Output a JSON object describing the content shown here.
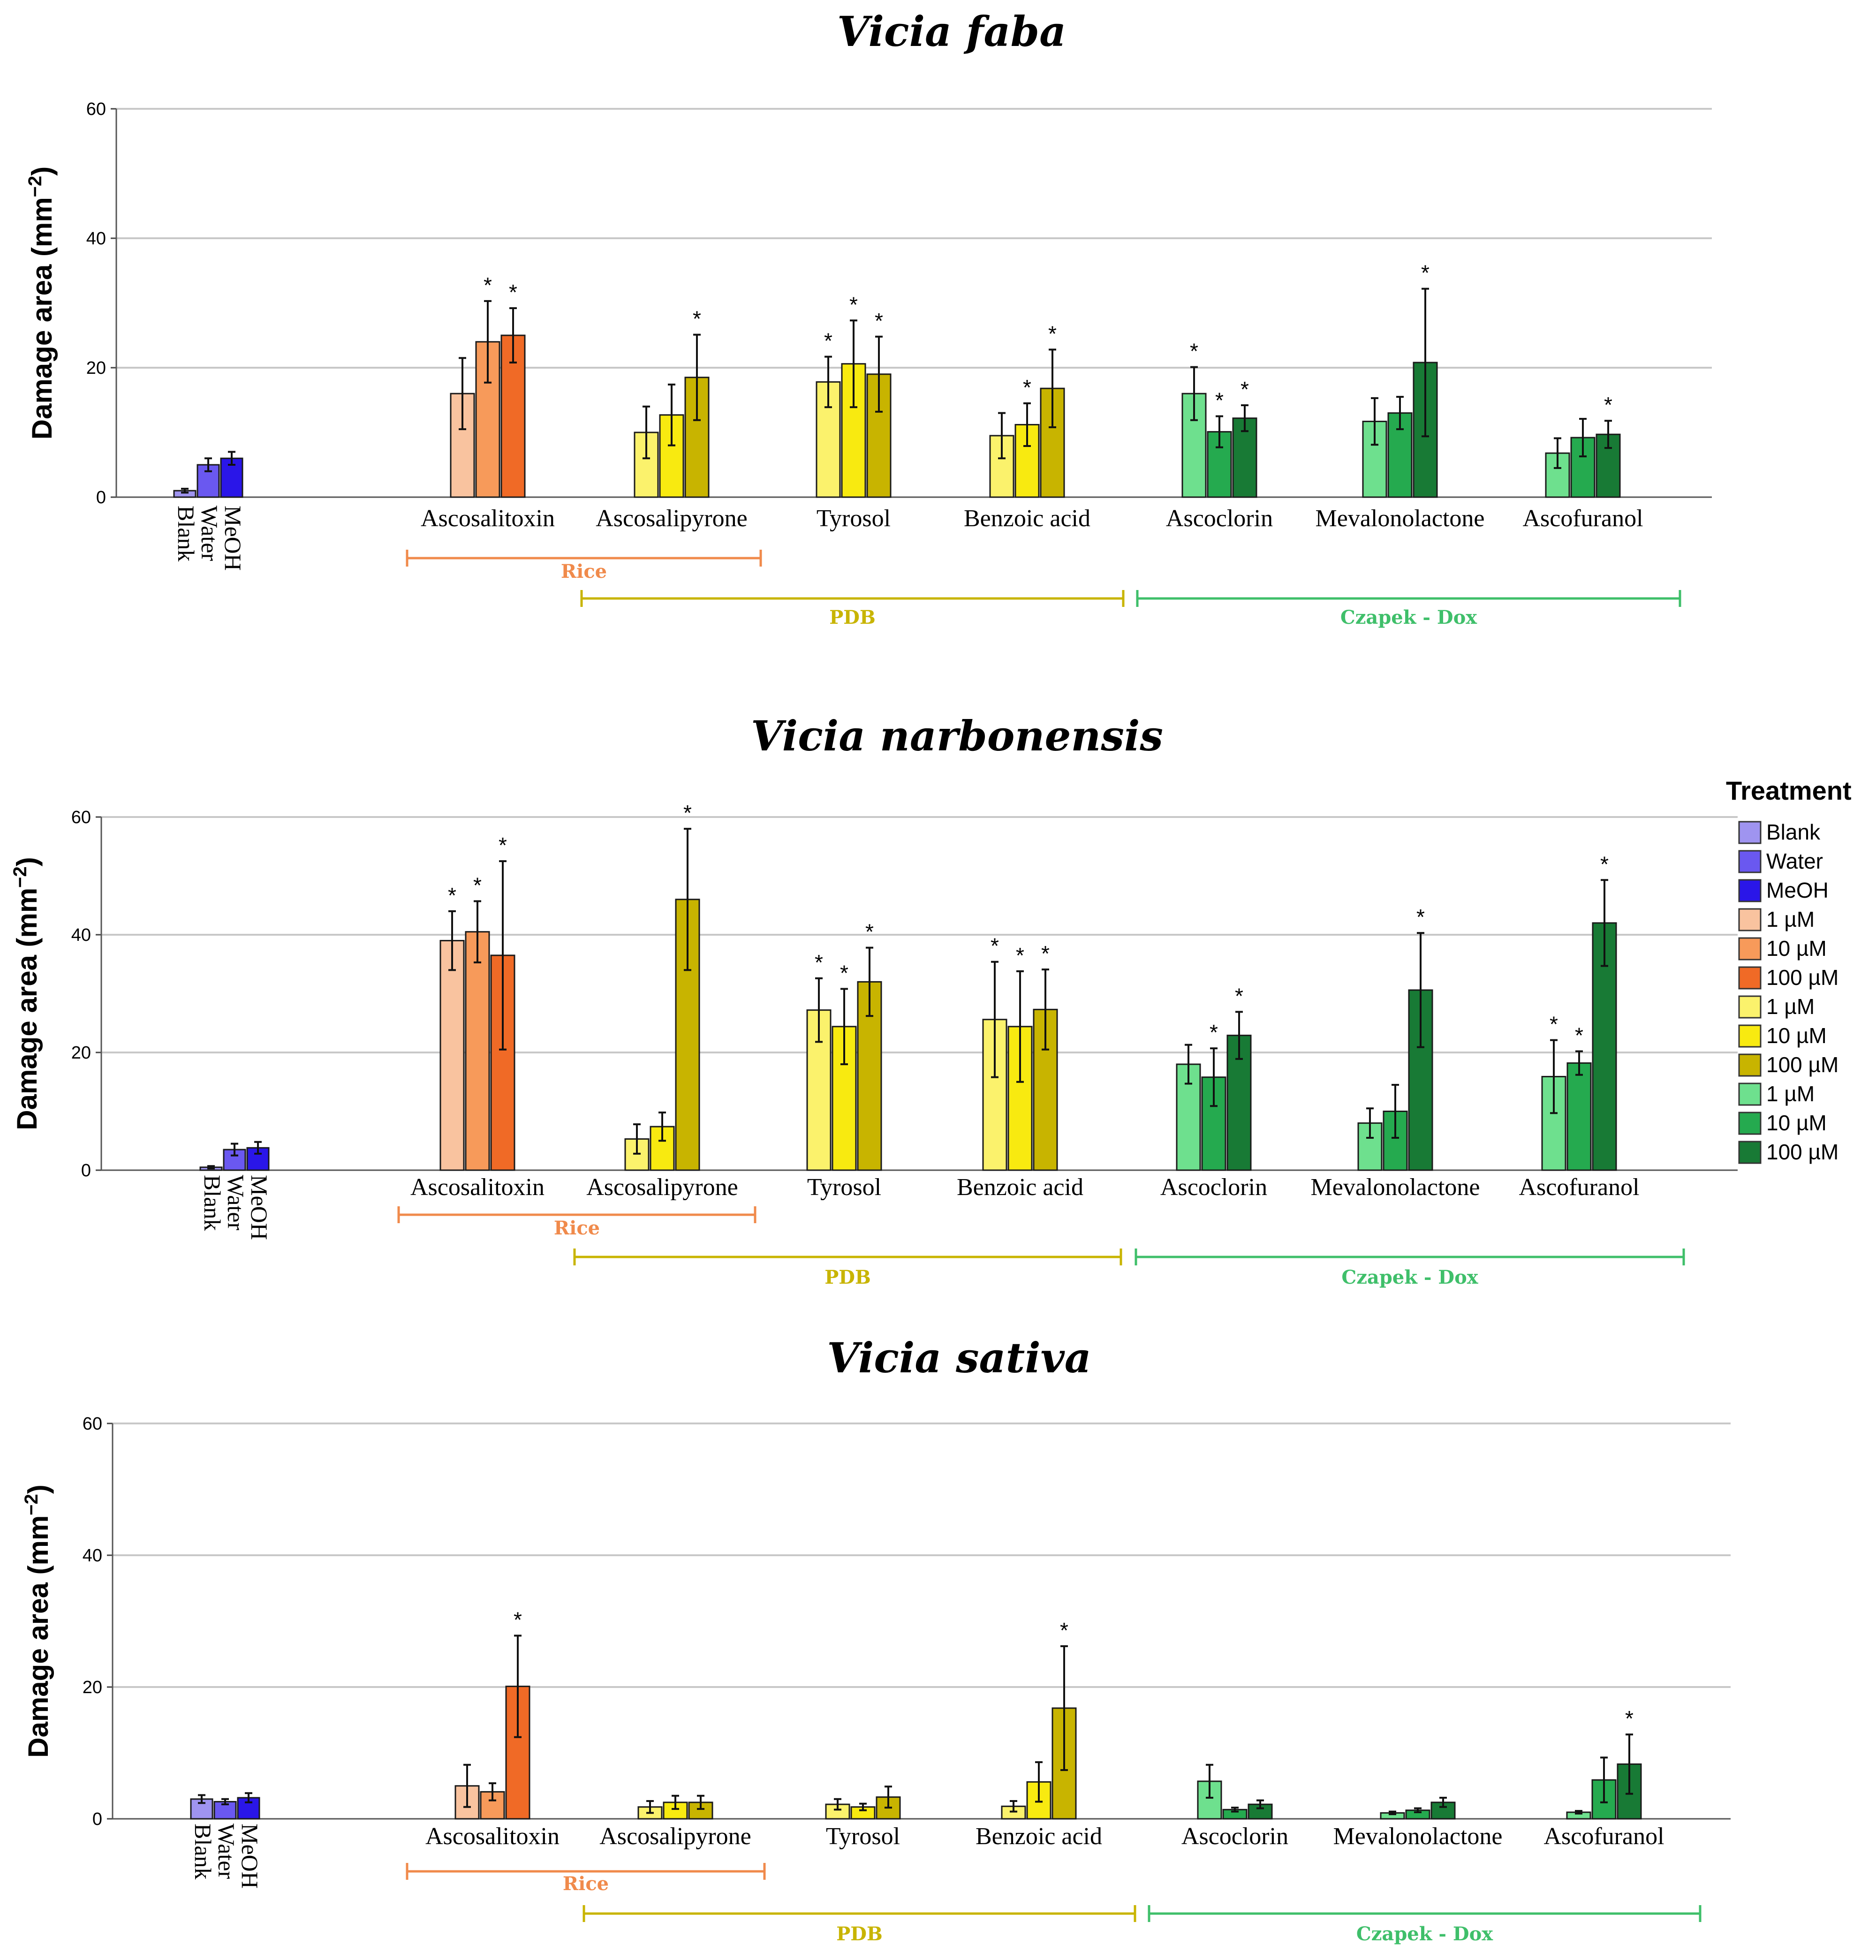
{
  "chart_data": {
    "type": "bar",
    "y_axis_label": "Damage area (mm",
    "y_axis_label_exponent": "−2",
    "y_axis_label_close": ")",
    "ylim": [
      0,
      60
    ],
    "yticks": [
      0,
      20,
      40,
      60
    ],
    "control_labels": [
      "Blank",
      "Water",
      "MeOH"
    ],
    "compound_labels": [
      "Ascosalitoxin",
      "Ascosalipyrone",
      "Tyrosol",
      "Benzoic acid",
      "Ascoclorin",
      "Mevalonolactone",
      "Ascofuranol"
    ],
    "media_groups": [
      {
        "name": "Rice",
        "color": "#f08a4b"
      },
      {
        "name": "PDB",
        "color": "#c8b400"
      },
      {
        "name": "Czapek - Dox",
        "color": "#3fbf6a"
      }
    ],
    "colors": {
      "control": [
        "#9f94f0",
        "#6a58f0",
        "#2a16e8"
      ],
      "rice": [
        "#f9c39f",
        "#f79a5a",
        "#f06a26"
      ],
      "pdb": [
        "#fbf26c",
        "#f8ea10",
        "#c8b400"
      ],
      "czapek": [
        "#6ee08e",
        "#25aa4f",
        "#187a35"
      ]
    },
    "legend": {
      "title": "Treatment",
      "items": [
        {
          "label": "Blank",
          "color": "#9f94f0"
        },
        {
          "label": "Water",
          "color": "#6a58f0"
        },
        {
          "label": "MeOH",
          "color": "#2a16e8"
        },
        {
          "label": "1 µM",
          "color": "#f9c39f"
        },
        {
          "label": "10 µM",
          "color": "#f79a5a"
        },
        {
          "label": "100 µM",
          "color": "#f06a26"
        },
        {
          "label": "1 µM",
          "color": "#fbf26c"
        },
        {
          "label": "10 µM",
          "color": "#f8ea10"
        },
        {
          "label": "100 µM",
          "color": "#c8b400"
        },
        {
          "label": "1 µM",
          "color": "#6ee08e"
        },
        {
          "label": "10 µM",
          "color": "#25aa4f"
        },
        {
          "label": "100 µM",
          "color": "#187a35"
        }
      ]
    },
    "panels": [
      {
        "title": "Vicia faba",
        "controls": [
          {
            "v": 1,
            "e": 0.3
          },
          {
            "v": 5,
            "e": 1
          },
          {
            "v": 6,
            "e": 1
          }
        ],
        "compounds": [
          {
            "name": "Ascosalitoxin",
            "bars": [
              {
                "v": 16,
                "e": 5.5,
                "sig": false
              },
              {
                "v": 24,
                "e": 6.3,
                "sig": true
              },
              {
                "v": 25,
                "e": 4.2,
                "sig": true
              }
            ]
          },
          {
            "name": "Ascosalipyrone",
            "bars": [
              {
                "v": 10,
                "e": 4,
                "sig": false
              },
              {
                "v": 12.7,
                "e": 4.7,
                "sig": false
              },
              {
                "v": 18.5,
                "e": 6.6,
                "sig": true
              }
            ]
          },
          {
            "name": "Tyrosol",
            "bars": [
              {
                "v": 17.8,
                "e": 3.9,
                "sig": true
              },
              {
                "v": 20.6,
                "e": 6.7,
                "sig": true
              },
              {
                "v": 19,
                "e": 5.8,
                "sig": true
              }
            ]
          },
          {
            "name": "Benzoic acid",
            "bars": [
              {
                "v": 9.5,
                "e": 3.5,
                "sig": false
              },
              {
                "v": 11.2,
                "e": 3.3,
                "sig": true
              },
              {
                "v": 16.8,
                "e": 6,
                "sig": true
              }
            ]
          },
          {
            "name": "Ascoclorin",
            "bars": [
              {
                "v": 16,
                "e": 4.1,
                "sig": true
              },
              {
                "v": 10.1,
                "e": 2.4,
                "sig": true
              },
              {
                "v": 12.2,
                "e": 2,
                "sig": true
              }
            ]
          },
          {
            "name": "Mevalonolactone",
            "bars": [
              {
                "v": 11.7,
                "e": 3.6,
                "sig": false
              },
              {
                "v": 13,
                "e": 2.5,
                "sig": false
              },
              {
                "v": 20.8,
                "e": 11.4,
                "sig": true
              }
            ]
          },
          {
            "name": "Ascofuranol",
            "bars": [
              {
                "v": 6.8,
                "e": 2.3,
                "sig": false
              },
              {
                "v": 9.2,
                "e": 2.9,
                "sig": false
              },
              {
                "v": 9.7,
                "e": 2.1,
                "sig": true
              }
            ]
          }
        ]
      },
      {
        "title": "Vicia narbonensis",
        "controls": [
          {
            "v": 0.5,
            "e": 0.2
          },
          {
            "v": 3.5,
            "e": 1
          },
          {
            "v": 3.8,
            "e": 1
          }
        ],
        "compounds": [
          {
            "name": "Ascosalitoxin",
            "bars": [
              {
                "v": 39,
                "e": 5,
                "sig": true
              },
              {
                "v": 40.5,
                "e": 5.2,
                "sig": true
              },
              {
                "v": 36.5,
                "e": 16,
                "sig": true
              }
            ]
          },
          {
            "name": "Ascosalipyrone",
            "bars": [
              {
                "v": 5.3,
                "e": 2.5,
                "sig": false
              },
              {
                "v": 7.4,
                "e": 2.4,
                "sig": false
              },
              {
                "v": 46,
                "e": 12,
                "sig": true
              }
            ]
          },
          {
            "name": "Tyrosol",
            "bars": [
              {
                "v": 27.2,
                "e": 5.4,
                "sig": true
              },
              {
                "v": 24.4,
                "e": 6.4,
                "sig": true
              },
              {
                "v": 32,
                "e": 5.8,
                "sig": true
              }
            ]
          },
          {
            "name": "Benzoic acid",
            "bars": [
              {
                "v": 25.6,
                "e": 9.8,
                "sig": true
              },
              {
                "v": 24.4,
                "e": 9.4,
                "sig": true
              },
              {
                "v": 27.3,
                "e": 6.8,
                "sig": true
              }
            ]
          },
          {
            "name": "Ascoclorin",
            "bars": [
              {
                "v": 18,
                "e": 3.3,
                "sig": false
              },
              {
                "v": 15.8,
                "e": 4.9,
                "sig": true
              },
              {
                "v": 22.9,
                "e": 4,
                "sig": true
              }
            ]
          },
          {
            "name": "Mevalonolactone",
            "bars": [
              {
                "v": 8,
                "e": 2.5,
                "sig": false
              },
              {
                "v": 10,
                "e": 4.5,
                "sig": false
              },
              {
                "v": 30.6,
                "e": 9.7,
                "sig": true
              }
            ]
          },
          {
            "name": "Ascofuranol",
            "bars": [
              {
                "v": 15.9,
                "e": 6.2,
                "sig": true
              },
              {
                "v": 18.2,
                "e": 2,
                "sig": true
              },
              {
                "v": 42,
                "e": 7.3,
                "sig": true
              }
            ]
          }
        ]
      },
      {
        "title": "Vicia sativa",
        "controls": [
          {
            "v": 3,
            "e": 0.6
          },
          {
            "v": 2.6,
            "e": 0.4
          },
          {
            "v": 3.2,
            "e": 0.7
          }
        ],
        "compounds": [
          {
            "name": "Ascosalitoxin",
            "bars": [
              {
                "v": 5,
                "e": 3.2,
                "sig": false
              },
              {
                "v": 4.1,
                "e": 1.3,
                "sig": false
              },
              {
                "v": 20.1,
                "e": 7.7,
                "sig": true
              }
            ]
          },
          {
            "name": "Ascosalipyrone",
            "bars": [
              {
                "v": 1.8,
                "e": 0.9,
                "sig": false
              },
              {
                "v": 2.5,
                "e": 1,
                "sig": false
              },
              {
                "v": 2.5,
                "e": 1,
                "sig": false
              }
            ]
          },
          {
            "name": "Tyrosol",
            "bars": [
              {
                "v": 2.2,
                "e": 0.8,
                "sig": false
              },
              {
                "v": 1.8,
                "e": 0.5,
                "sig": false
              },
              {
                "v": 3.3,
                "e": 1.6,
                "sig": false
              }
            ]
          },
          {
            "name": "Benzoic acid",
            "bars": [
              {
                "v": 1.9,
                "e": 0.8,
                "sig": false
              },
              {
                "v": 5.6,
                "e": 3,
                "sig": false
              },
              {
                "v": 16.8,
                "e": 9.4,
                "sig": true
              }
            ]
          },
          {
            "name": "Ascoclorin",
            "bars": [
              {
                "v": 5.7,
                "e": 2.5,
                "sig": false
              },
              {
                "v": 1.4,
                "e": 0.3,
                "sig": false
              },
              {
                "v": 2.2,
                "e": 0.6,
                "sig": false
              }
            ]
          },
          {
            "name": "Mevalonolactone",
            "bars": [
              {
                "v": 0.9,
                "e": 0.2,
                "sig": false
              },
              {
                "v": 1.3,
                "e": 0.3,
                "sig": false
              },
              {
                "v": 2.5,
                "e": 0.7,
                "sig": false
              }
            ]
          },
          {
            "name": "Ascofuranol",
            "bars": [
              {
                "v": 1,
                "e": 0.2,
                "sig": false
              },
              {
                "v": 5.9,
                "e": 3.4,
                "sig": false
              },
              {
                "v": 8.3,
                "e": 4.5,
                "sig": true
              }
            ]
          }
        ]
      }
    ]
  }
}
